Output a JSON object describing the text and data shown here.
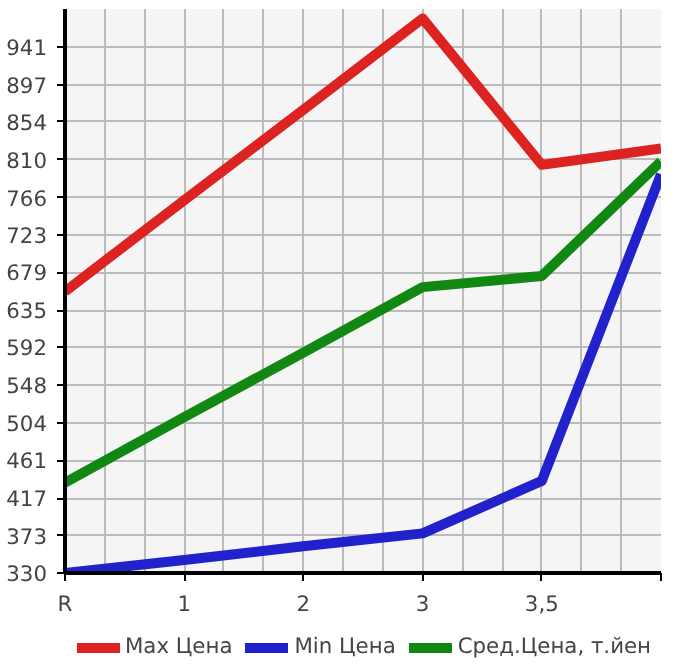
{
  "chart_data": {
    "type": "line",
    "categories": [
      "R",
      "1",
      "2",
      "3",
      "3,5",
      null
    ],
    "series": [
      {
        "name": "Max Цена",
        "color": "#dd2222",
        "values": [
          657,
          763,
          868,
          974,
          804,
          823
        ]
      },
      {
        "name": "Min Цена",
        "color": "#2222cc",
        "values": [
          330,
          345,
          361,
          376,
          437,
          793
        ]
      },
      {
        "name": "Сред.Цена, т.йен",
        "color": "#118811",
        "values": [
          435,
          511,
          586,
          662,
          675,
          808
        ]
      }
    ],
    "ylim": [
      330,
      985
    ],
    "yticks": [
      330,
      373,
      417,
      461,
      504,
      548,
      592,
      635,
      679,
      723,
      766,
      810,
      854,
      897,
      941
    ],
    "grid": true,
    "legend": "bottom",
    "marker": "none",
    "line_style": "solid"
  }
}
